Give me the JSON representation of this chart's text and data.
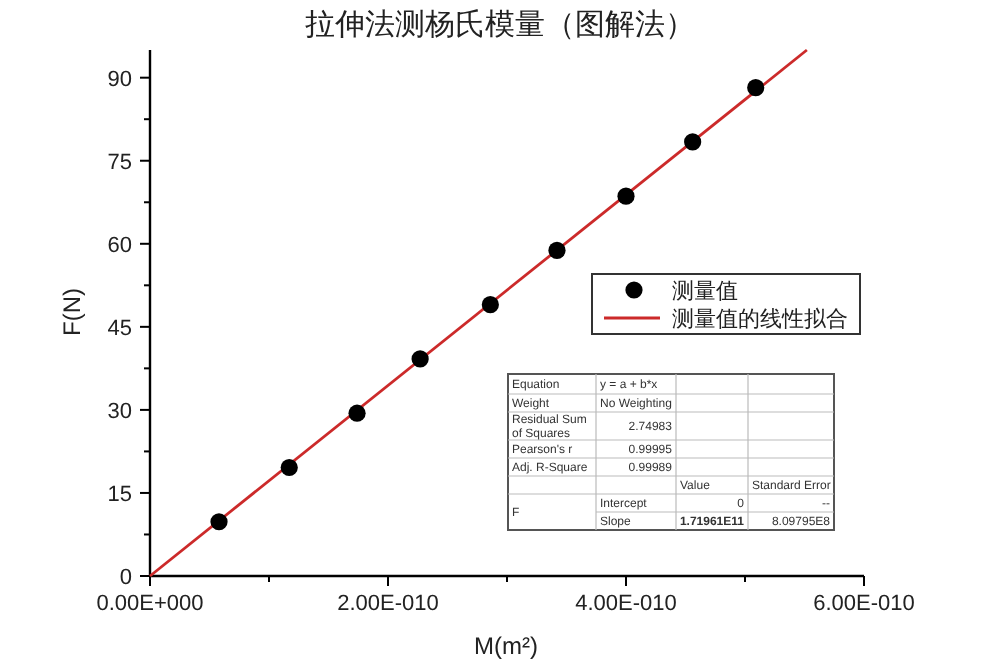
{
  "chart_data": {
    "type": "scatter",
    "title": "拉伸法测杨氏模量（图解法）",
    "xlabel": "M(m²)",
    "ylabel": "F(N)",
    "xlim": [
      0,
      6e-10
    ],
    "ylim": [
      0,
      95
    ],
    "xticks": [
      {
        "value": 0,
        "label": "0.00E+000"
      },
      {
        "value": 1e-10,
        "label": null
      },
      {
        "value": 2e-10,
        "label": "2.00E-010"
      },
      {
        "value": 3e-10,
        "label": null
      },
      {
        "value": 4e-10,
        "label": "4.00E-010"
      },
      {
        "value": 5e-10,
        "label": null
      },
      {
        "value": 6e-10,
        "label": "6.00E-010"
      }
    ],
    "yticks": [
      0,
      {
        "value": 7.5,
        "label": null
      },
      15,
      {
        "value": 22.5,
        "label": null
      },
      30,
      {
        "value": 37.5,
        "label": null
      },
      45,
      {
        "value": 52.5,
        "label": null
      },
      60,
      {
        "value": 67.5,
        "label": null
      },
      75,
      {
        "value": 82.5,
        "label": null
      },
      90
    ],
    "grid": false,
    "legend": "right",
    "series": [
      {
        "name": "测量值",
        "marker": "circle",
        "color": "#000000",
        "x": [
          5.8e-11,
          1.17e-10,
          1.74e-10,
          2.27e-10,
          2.86e-10,
          3.42e-10,
          4e-10,
          4.56e-10,
          5.09e-10
        ],
        "values": [
          9.8,
          19.6,
          29.4,
          39.2,
          49.0,
          58.8,
          68.6,
          78.4,
          88.2
        ]
      },
      {
        "name": "测量值的线性拟合",
        "type": "line",
        "line_style": "solid",
        "color": "#cc2a2a",
        "x": [
          0,
          5.52e-10
        ],
        "values": [
          0,
          95
        ]
      }
    ],
    "annotations": [
      "Equation",
      "y = a + b*x",
      "Weight",
      "No Weighting",
      "Residual Sum of Squares",
      "2.74983",
      "Pearson's r",
      "0.99995",
      "Adj. R-Square",
      "0.99989",
      "Value",
      "Standard Error",
      "F",
      "Intercept",
      "0",
      "--",
      "Slope",
      "1.71961E11",
      "8.09795E8"
    ]
  }
}
